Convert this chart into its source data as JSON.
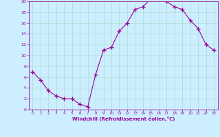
{
  "x": [
    0,
    1,
    2,
    3,
    4,
    5,
    6,
    7,
    8,
    9,
    10,
    11,
    12,
    13,
    14,
    15,
    16,
    17,
    18,
    19,
    20,
    21,
    22,
    23
  ],
  "y": [
    7,
    5.5,
    3.5,
    2.5,
    2,
    2,
    1,
    0.5,
    6.5,
    11,
    11.5,
    14.5,
    16,
    18.5,
    19,
    20.5,
    20.5,
    20,
    19,
    18.5,
    16.5,
    15,
    12,
    11
  ],
  "line_color": "#990099",
  "marker_color": "#990099",
  "bg_color": "#cceeff",
  "grid_color": "#aaddcc",
  "xlabel": "Windchill (Refroidissement éolien,°C)",
  "xlabel_color": "#990099",
  "tick_color": "#990099",
  "spine_color": "#990099",
  "ylim": [
    0,
    20
  ],
  "xlim": [
    -0.5,
    23.5
  ],
  "yticks": [
    0,
    2,
    4,
    6,
    8,
    10,
    12,
    14,
    16,
    18,
    20
  ],
  "xticks": [
    0,
    1,
    2,
    3,
    4,
    5,
    6,
    7,
    8,
    9,
    10,
    11,
    12,
    13,
    14,
    15,
    16,
    17,
    18,
    19,
    20,
    21,
    22,
    23
  ]
}
